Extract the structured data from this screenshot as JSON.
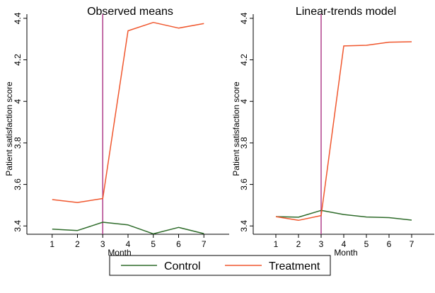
{
  "chart_data": [
    {
      "type": "line",
      "title": "Observed means",
      "xlabel": "Month",
      "ylabel": "Patient satisfaction score",
      "x": [
        1,
        2,
        3,
        4,
        5,
        6,
        7
      ],
      "xticks": [
        "1",
        "2",
        "3",
        "4",
        "5",
        "6",
        "7"
      ],
      "xlim": [
        0,
        8
      ],
      "yticks": [
        "3.4",
        "3.6",
        "3.8",
        "4",
        "4.2",
        "4.4"
      ],
      "ylim": [
        3.36,
        4.42
      ],
      "grid": false,
      "reference_line_x": 3,
      "series": [
        {
          "name": "Control",
          "values": [
            3.385,
            3.378,
            3.418,
            3.405,
            3.362,
            3.393,
            3.363
          ]
        },
        {
          "name": "Treatment",
          "values": [
            3.527,
            3.513,
            3.532,
            4.34,
            4.38,
            4.353,
            4.375
          ]
        }
      ]
    },
    {
      "type": "line",
      "title": "Linear-trends model",
      "xlabel": "Month",
      "ylabel": "Patient satisfaction score",
      "x": [
        1,
        2,
        3,
        4,
        5,
        6,
        7
      ],
      "xticks": [
        "1",
        "2",
        "3",
        "4",
        "5",
        "6",
        "7"
      ],
      "xlim": [
        0,
        8
      ],
      "yticks": [
        "3.4",
        "3.6",
        "3.8",
        "4",
        "4.2",
        "4.4"
      ],
      "ylim": [
        3.36,
        4.42
      ],
      "grid": false,
      "reference_line_x": 3,
      "series": [
        {
          "name": "Control",
          "values": [
            3.445,
            3.442,
            3.475,
            3.455,
            3.443,
            3.44,
            3.428
          ]
        },
        {
          "name": "Treatment",
          "values": [
            3.445,
            3.427,
            3.45,
            4.267,
            4.27,
            4.285,
            4.287
          ]
        }
      ]
    }
  ],
  "legend": {
    "position": "bottom",
    "items": [
      {
        "label": "Control",
        "color": "#2e6b2a"
      },
      {
        "label": "Treatment",
        "color": "#f0572e"
      }
    ]
  },
  "colors": {
    "control": "#2e6b2a",
    "treatment": "#f0572e",
    "reference_line": "#b0408c",
    "axis": "#000000"
  }
}
